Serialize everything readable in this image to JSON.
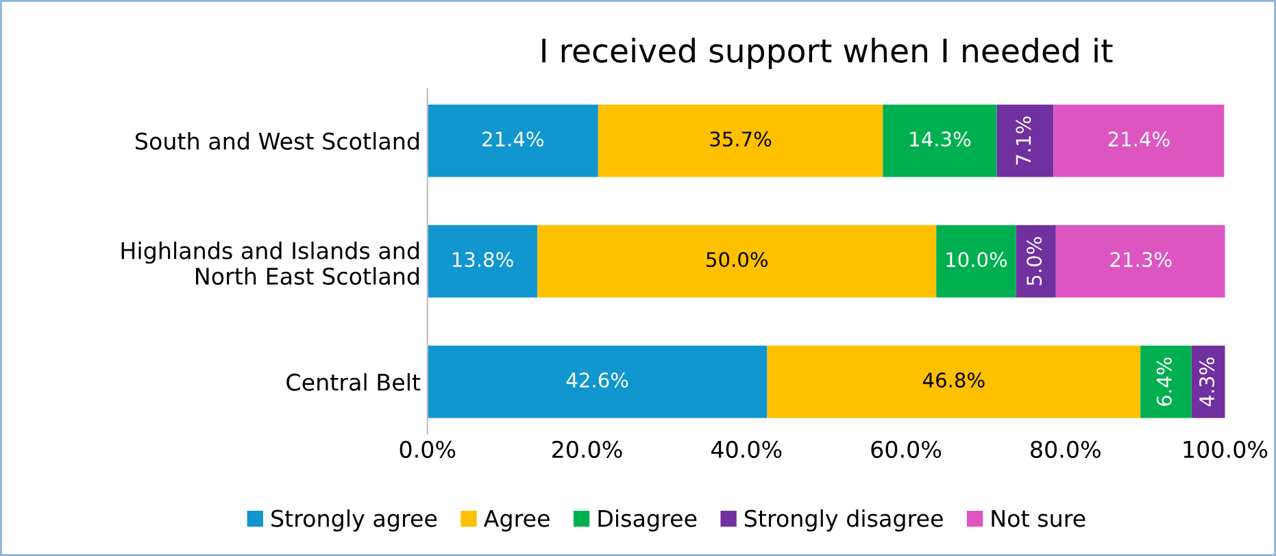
{
  "chart_data": {
    "type": "bar",
    "orientation": "horizontal",
    "stacked": true,
    "title": "I received support when I needed it",
    "categories": [
      "South and West Scotland",
      "Highlands and Islands and\nNorth East Scotland",
      "Central Belt"
    ],
    "series": [
      {
        "name": "Strongly agree",
        "color": "#1196cf",
        "values": [
          21.4,
          13.8,
          42.6
        ],
        "value_labels": [
          "21.4%",
          "13.8%",
          "42.6%"
        ]
      },
      {
        "name": "Agree",
        "color": "#ffc000",
        "values": [
          35.7,
          50.0,
          46.8
        ],
        "value_labels": [
          "35.7%",
          "50.0%",
          "46.8%"
        ]
      },
      {
        "name": "Disagree",
        "color": "#00b050",
        "values": [
          14.3,
          10.0,
          6.4
        ],
        "value_labels": [
          "14.3%",
          "10.0%",
          "6.4%"
        ]
      },
      {
        "name": "Strongly disagree",
        "color": "#7030a0",
        "values": [
          7.1,
          5.0,
          4.3
        ],
        "value_labels": [
          "7.1%",
          "5.0%",
          "4.3%"
        ]
      },
      {
        "name": "Not sure",
        "color": "#dd55c1",
        "values": [
          21.4,
          21.3,
          null
        ],
        "value_labels": [
          "21.4%",
          "21.3%",
          null
        ]
      }
    ],
    "xlim": [
      0,
      100
    ],
    "xticks": [
      {
        "value": 0,
        "label": "0.0%"
      },
      {
        "value": 20,
        "label": "20.0%"
      },
      {
        "value": 40,
        "label": "40.0%"
      },
      {
        "value": 60,
        "label": "60.0%"
      },
      {
        "value": 80,
        "label": "80.0%"
      },
      {
        "value": 100,
        "label": "100.0%"
      }
    ],
    "grid": false,
    "legend": "bottom"
  }
}
